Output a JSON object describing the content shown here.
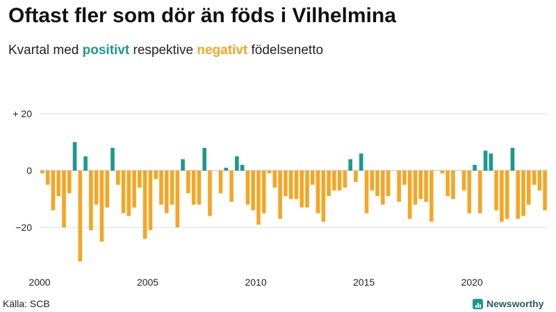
{
  "title": "Oftast fler som dör än föds i Vilhelmina",
  "subtitle": {
    "part1": "Kvartal med ",
    "positive_word": "positivt",
    "part2": " respektive ",
    "negative_word": "negativt",
    "part3": " födelsenetto"
  },
  "source": "Källa: SCB",
  "brand": "Newsworthy",
  "colors": {
    "positive": "#1a9a8a",
    "negative": "#f5a623",
    "grid": "#dddddd",
    "zero": "#bbbbbb"
  },
  "chart_data": {
    "type": "bar",
    "title": "Oftast fler som dör än föds i Vilhelmina",
    "start": "2000 Q1",
    "ylim": [
      -35,
      25
    ],
    "yticks": [
      20,
      0,
      -20
    ],
    "ytick_labels": [
      "+ 20",
      "0",
      "−20"
    ],
    "xticks": [
      2000,
      2005,
      2010,
      2015,
      2020
    ],
    "grid": true,
    "values": [
      -1,
      -5,
      -14,
      -9,
      -20,
      -8,
      10,
      -32,
      5,
      -21,
      -12,
      -25,
      -13,
      8,
      -5,
      -15,
      -16,
      -13,
      -6,
      -24,
      -21,
      -3,
      -12,
      -15,
      -12,
      -20,
      4,
      -8,
      -12,
      -12,
      8,
      -16,
      0,
      -8,
      1,
      -11,
      5,
      2,
      -12,
      -14,
      -19,
      -15,
      -1,
      -6,
      -17,
      -9,
      -10,
      -10,
      -13,
      -13,
      -5,
      -15,
      -18,
      -9,
      -7,
      -7,
      -6,
      4,
      -4,
      6,
      -15,
      -7,
      -9,
      -12,
      -9,
      0,
      -11,
      -5,
      -17,
      -12,
      -10,
      -11,
      -18,
      0,
      -1,
      -9,
      -10,
      0,
      -7,
      -15,
      2,
      -15,
      7,
      6,
      -14,
      -18,
      -17,
      8,
      -17,
      -16,
      -12,
      -5,
      -7,
      -14
    ]
  }
}
